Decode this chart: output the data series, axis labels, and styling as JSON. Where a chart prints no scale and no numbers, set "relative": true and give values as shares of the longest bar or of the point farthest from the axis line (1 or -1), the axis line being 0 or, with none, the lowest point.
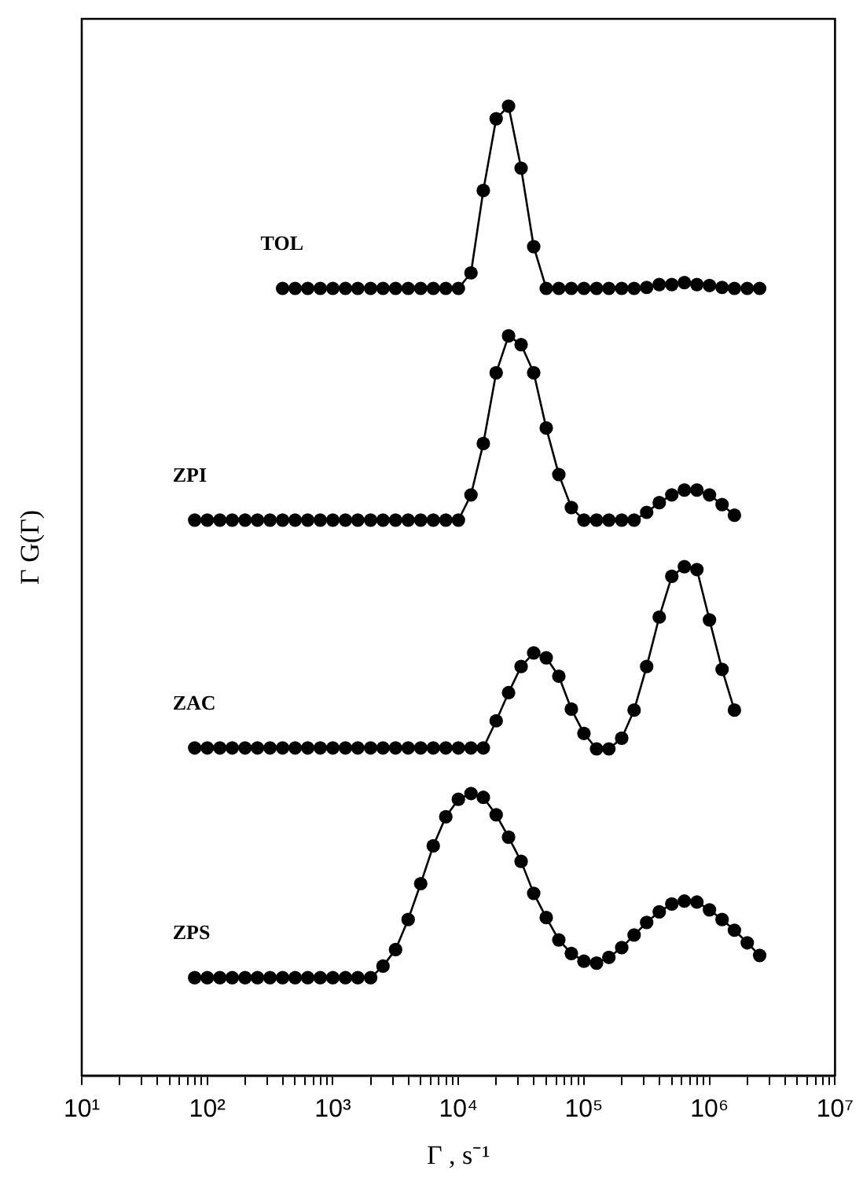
{
  "chart_data": {
    "type": "line",
    "xlabel": "Γ , s⁻¹",
    "ylabel": "Γ G(Γ)",
    "relative": true,
    "log": "x",
    "marker": "circle",
    "line_style": "solid",
    "grid": false,
    "legend": false,
    "xlim": [
      10,
      10000000
    ],
    "xticks": [
      {
        "value": 10,
        "label": "10¹"
      },
      {
        "value": 20,
        "label": null
      },
      {
        "value": 30,
        "label": null
      },
      {
        "value": 40,
        "label": null
      },
      {
        "value": 50,
        "label": null
      },
      {
        "value": 60,
        "label": null
      },
      {
        "value": 70,
        "label": null
      },
      {
        "value": 80,
        "label": null
      },
      {
        "value": 90,
        "label": null
      },
      {
        "value": 100,
        "label": "10²"
      },
      {
        "value": 200,
        "label": null
      },
      {
        "value": 300,
        "label": null
      },
      {
        "value": 400,
        "label": null
      },
      {
        "value": 500,
        "label": null
      },
      {
        "value": 600,
        "label": null
      },
      {
        "value": 700,
        "label": null
      },
      {
        "value": 800,
        "label": null
      },
      {
        "value": 900,
        "label": null
      },
      {
        "value": 1000,
        "label": "10³"
      },
      {
        "value": 2000,
        "label": null
      },
      {
        "value": 3000,
        "label": null
      },
      {
        "value": 4000,
        "label": null
      },
      {
        "value": 5000,
        "label": null
      },
      {
        "value": 6000,
        "label": null
      },
      {
        "value": 7000,
        "label": null
      },
      {
        "value": 8000,
        "label": null
      },
      {
        "value": 9000,
        "label": null
      },
      {
        "value": 10000,
        "label": "10⁴"
      },
      {
        "value": 20000,
        "label": null
      },
      {
        "value": 30000,
        "label": null
      },
      {
        "value": 40000,
        "label": null
      },
      {
        "value": 50000,
        "label": null
      },
      {
        "value": 60000,
        "label": null
      },
      {
        "value": 70000,
        "label": null
      },
      {
        "value": 80000,
        "label": null
      },
      {
        "value": 90000,
        "label": null
      },
      {
        "value": 100000,
        "label": "10⁵"
      },
      {
        "value": 200000,
        "label": null
      },
      {
        "value": 300000,
        "label": null
      },
      {
        "value": 400000,
        "label": null
      },
      {
        "value": 500000,
        "label": null
      },
      {
        "value": 600000,
        "label": null
      },
      {
        "value": 700000,
        "label": null
      },
      {
        "value": 800000,
        "label": null
      },
      {
        "value": 900000,
        "label": null
      },
      {
        "value": 1000000,
        "label": "10⁶"
      },
      {
        "value": 2000000,
        "label": null
      },
      {
        "value": 3000000,
        "label": null
      },
      {
        "value": 4000000,
        "label": null
      },
      {
        "value": 5000000,
        "label": null
      },
      {
        "value": 6000000,
        "label": null
      },
      {
        "value": 7000000,
        "label": null
      },
      {
        "value": 8000000,
        "label": null
      },
      {
        "value": 9000000,
        "label": null
      },
      {
        "value": 10000000,
        "label": "10⁷"
      }
    ],
    "series": [
      {
        "name": "TOL",
        "color": "#000000",
        "x": [
          398,
          501,
          631,
          794,
          1000,
          1260,
          1580,
          2000,
          2510,
          3160,
          3980,
          5010,
          6310,
          7940,
          10000,
          12600,
          15800,
          20000,
          25100,
          31600,
          39800,
          50100,
          63100,
          79400,
          100000,
          126000,
          158000,
          200000,
          251000,
          316000,
          398000,
          501000,
          631000,
          794000,
          1000000,
          1260000,
          1580000,
          2000000,
          2510000
        ],
        "values": [
          0.812,
          0.812,
          0.812,
          0.812,
          0.812,
          0.812,
          0.812,
          0.812,
          0.812,
          0.812,
          0.812,
          0.812,
          0.812,
          0.812,
          0.812,
          0.828,
          0.913,
          0.987,
          1.0,
          0.936,
          0.855,
          0.812,
          0.812,
          0.812,
          0.812,
          0.812,
          0.812,
          0.812,
          0.812,
          0.813,
          0.816,
          0.816,
          0.818,
          0.816,
          0.815,
          0.813,
          0.812,
          0.812,
          0.812
        ]
      },
      {
        "name": "ZPI",
        "color": "#000000",
        "x": [
          79.4,
          100,
          126,
          158,
          200,
          251,
          316,
          398,
          501,
          631,
          794,
          1000,
          1260,
          1580,
          2000,
          2510,
          3160,
          3980,
          5010,
          6310,
          7940,
          10000,
          12600,
          15800,
          20000,
          25100,
          31600,
          39800,
          50100,
          63100,
          79400,
          100000,
          126000,
          158000,
          200000,
          251000,
          316000,
          398000,
          501000,
          631000,
          794000,
          1000000,
          1260000,
          1580000
        ],
        "values": [
          0.573,
          0.573,
          0.573,
          0.573,
          0.573,
          0.573,
          0.573,
          0.573,
          0.573,
          0.573,
          0.573,
          0.573,
          0.573,
          0.573,
          0.573,
          0.573,
          0.573,
          0.573,
          0.573,
          0.573,
          0.573,
          0.573,
          0.599,
          0.652,
          0.725,
          0.763,
          0.754,
          0.725,
          0.668,
          0.62,
          0.586,
          0.573,
          0.573,
          0.573,
          0.573,
          0.573,
          0.581,
          0.591,
          0.599,
          0.604,
          0.604,
          0.599,
          0.589,
          0.578
        ]
      },
      {
        "name": "ZAC",
        "color": "#000000",
        "x": [
          79.4,
          100,
          126,
          158,
          200,
          251,
          316,
          398,
          501,
          631,
          794,
          1000,
          1260,
          1580,
          2000,
          2510,
          3160,
          3980,
          5010,
          6310,
          7940,
          10000,
          12600,
          15800,
          20000,
          25100,
          31600,
          39800,
          50100,
          63100,
          79400,
          100000,
          126000,
          158000,
          200000,
          251000,
          316000,
          398000,
          501000,
          631000,
          794000,
          1000000,
          1260000,
          1580000
        ],
        "values": [
          0.338,
          0.338,
          0.338,
          0.338,
          0.338,
          0.338,
          0.338,
          0.338,
          0.338,
          0.338,
          0.338,
          0.338,
          0.338,
          0.338,
          0.338,
          0.338,
          0.338,
          0.338,
          0.338,
          0.338,
          0.338,
          0.338,
          0.338,
          0.338,
          0.366,
          0.395,
          0.422,
          0.436,
          0.431,
          0.412,
          0.378,
          0.353,
          0.337,
          0.337,
          0.348,
          0.377,
          0.422,
          0.473,
          0.515,
          0.525,
          0.522,
          0.47,
          0.419,
          0.377
        ]
      },
      {
        "name": "ZPS",
        "color": "#000000",
        "x": [
          79.4,
          100,
          126,
          158,
          200,
          251,
          316,
          398,
          501,
          631,
          794,
          1000,
          1260,
          1580,
          2000,
          2510,
          3160,
          3980,
          5010,
          6310,
          7940,
          10000,
          12600,
          15800,
          20000,
          25100,
          31600,
          39800,
          50100,
          63100,
          79400,
          100000,
          126000,
          158000,
          200000,
          251000,
          316000,
          398000,
          501000,
          631000,
          794000,
          1000000,
          1260000,
          1580000,
          2000000,
          2510000
        ],
        "values": [
          0.101,
          0.101,
          0.101,
          0.101,
          0.101,
          0.101,
          0.101,
          0.101,
          0.101,
          0.101,
          0.101,
          0.101,
          0.101,
          0.101,
          0.101,
          0.113,
          0.13,
          0.161,
          0.198,
          0.237,
          0.267,
          0.285,
          0.291,
          0.287,
          0.269,
          0.246,
          0.221,
          0.188,
          0.163,
          0.14,
          0.126,
          0.118,
          0.116,
          0.122,
          0.132,
          0.145,
          0.158,
          0.169,
          0.177,
          0.18,
          0.179,
          0.171,
          0.161,
          0.15,
          0.137,
          0.124
        ]
      }
    ]
  }
}
